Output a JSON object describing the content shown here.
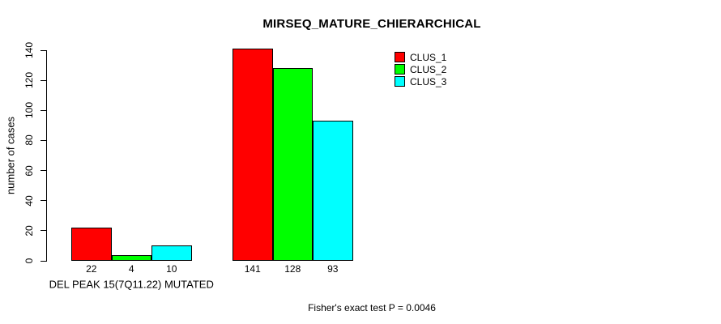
{
  "chart_data": {
    "type": "bar",
    "title": "MIRSEQ_MATURE_CHIERARCHICAL",
    "ylabel": "number of cases",
    "xlabel": "",
    "categories": [
      "DEL PEAK 15(7Q11.22) MUTATED",
      ""
    ],
    "series": [
      {
        "name": "CLUS_1",
        "color": "#ff0000",
        "values": [
          22,
          141
        ]
      },
      {
        "name": "CLUS_2",
        "color": "#00ff00",
        "values": [
          4,
          128
        ]
      },
      {
        "name": "CLUS_3",
        "color": "#00ffff",
        "values": [
          10,
          93
        ]
      }
    ],
    "yticks": [
      0,
      20,
      40,
      60,
      80,
      100,
      120,
      140
    ],
    "ylim": [
      0,
      140
    ],
    "grid": false,
    "bar_value_labels_shown": true,
    "legend_position": "top-right",
    "annotation": "Fisher's exact test P = 0.0046"
  },
  "colors": {
    "background": "#ffffff",
    "axis": "#000000",
    "bar_border": "#000000",
    "clus_1": "#ff0000",
    "clus_2": "#00ff00",
    "clus_3": "#00ffff"
  }
}
